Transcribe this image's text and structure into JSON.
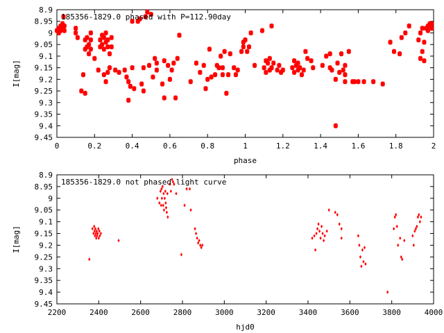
{
  "chart_data": [
    {
      "type": "scatter",
      "title": "185356-1829.0 phased with P=112.90day",
      "xlabel": "phase",
      "ylabel": "I[mag]",
      "xlim": [
        0,
        2
      ],
      "ylim": [
        8.9,
        9.45
      ],
      "y_inverted": true,
      "marker": "filled-square-star",
      "color": "#ff0000",
      "xticks": [
        "0",
        "0.2",
        "0.4",
        "0.6",
        "0.8",
        "1",
        "1.2",
        "1.4",
        "1.6",
        "1.8",
        "2"
      ],
      "yticks": [
        "8.9",
        "8.95",
        "9",
        "9.05",
        "9.1",
        "9.15",
        "9.2",
        "9.25",
        "9.3",
        "9.35",
        "9.4",
        "9.45"
      ],
      "points": [
        [
          0.0,
          8.99
        ],
        [
          0.01,
          8.98
        ],
        [
          0.01,
          9.0
        ],
        [
          0.02,
          8.97
        ],
        [
          0.02,
          8.99
        ],
        [
          0.03,
          8.96
        ],
        [
          0.03,
          8.98
        ],
        [
          0.035,
          8.93
        ],
        [
          0.04,
          8.99
        ],
        [
          0.04,
          8.97
        ],
        [
          0.1,
          8.98
        ],
        [
          0.1,
          9.0
        ],
        [
          0.11,
          9.02
        ],
        [
          0.13,
          9.25
        ],
        [
          0.14,
          9.18
        ],
        [
          0.15,
          9.26
        ],
        [
          0.15,
          9.03
        ],
        [
          0.15,
          9.07
        ],
        [
          0.16,
          9.06
        ],
        [
          0.16,
          9.02
        ],
        [
          0.17,
          9.05
        ],
        [
          0.17,
          9.09
        ],
        [
          0.18,
          9.03
        ],
        [
          0.18,
          9.07
        ],
        [
          0.18,
          9.0
        ],
        [
          0.2,
          9.11
        ],
        [
          0.22,
          9.16
        ],
        [
          0.23,
          9.06
        ],
        [
          0.23,
          9.03
        ],
        [
          0.24,
          9.01
        ],
        [
          0.24,
          9.05
        ],
        [
          0.25,
          9.02
        ],
        [
          0.25,
          9.07
        ],
        [
          0.25,
          9.18
        ],
        [
          0.26,
          9.04
        ],
        [
          0.26,
          9.21
        ],
        [
          0.26,
          9.0
        ],
        [
          0.27,
          9.03
        ],
        [
          0.27,
          9.17
        ],
        [
          0.27,
          9.06
        ],
        [
          0.28,
          9.15
        ],
        [
          0.28,
          9.09
        ],
        [
          0.29,
          9.06
        ],
        [
          0.29,
          9.02
        ],
        [
          0.31,
          9.16
        ],
        [
          0.33,
          9.17
        ],
        [
          0.36,
          9.16
        ],
        [
          0.37,
          9.19
        ],
        [
          0.38,
          9.29
        ],
        [
          0.38,
          9.21
        ],
        [
          0.39,
          9.23
        ],
        [
          0.4,
          9.15
        ],
        [
          0.4,
          8.95
        ],
        [
          0.41,
          9.24
        ],
        [
          0.43,
          8.95
        ],
        [
          0.44,
          8.94
        ],
        [
          0.45,
          9.22
        ],
        [
          0.46,
          9.25
        ],
        [
          0.46,
          9.15
        ],
        [
          0.47,
          8.93
        ],
        [
          0.48,
          8.91
        ],
        [
          0.49,
          9.14
        ],
        [
          0.5,
          8.92
        ],
        [
          0.51,
          9.19
        ],
        [
          0.52,
          9.11
        ],
        [
          0.53,
          9.16
        ],
        [
          0.53,
          9.13
        ],
        [
          0.56,
          9.22
        ],
        [
          0.57,
          9.12
        ],
        [
          0.57,
          9.28
        ],
        [
          0.59,
          9.14
        ],
        [
          0.6,
          9.2
        ],
        [
          0.61,
          9.16
        ],
        [
          0.62,
          9.13
        ],
        [
          0.63,
          9.28
        ],
        [
          0.64,
          9.11
        ],
        [
          0.65,
          9.01
        ],
        [
          0.71,
          9.21
        ],
        [
          0.74,
          9.13
        ],
        [
          0.76,
          9.17
        ],
        [
          0.78,
          9.14
        ],
        [
          0.79,
          9.24
        ],
        [
          0.8,
          9.2
        ],
        [
          0.81,
          9.07
        ],
        [
          0.82,
          9.19
        ],
        [
          0.84,
          9.18
        ],
        [
          0.85,
          9.14
        ],
        [
          0.86,
          9.15
        ],
        [
          0.87,
          9.1
        ],
        [
          0.88,
          9.18
        ],
        [
          0.88,
          9.15
        ],
        [
          0.89,
          9.08
        ],
        [
          0.9,
          9.26
        ],
        [
          0.91,
          9.18
        ],
        [
          0.92,
          9.09
        ],
        [
          0.94,
          9.15
        ],
        [
          0.95,
          9.18
        ],
        [
          0.96,
          9.16
        ],
        [
          0.98,
          9.08
        ],
        [
          0.99,
          9.04
        ],
        [
          0.99,
          9.06
        ],
        [
          1.0,
          9.03
        ],
        [
          1.01,
          9.08
        ],
        [
          1.02,
          9.06
        ],
        [
          1.03,
          9.0
        ],
        [
          1.05,
          9.14
        ],
        [
          1.09,
          8.99
        ],
        [
          1.1,
          9.15
        ],
        [
          1.11,
          9.12
        ],
        [
          1.11,
          9.17
        ],
        [
          1.12,
          9.13
        ],
        [
          1.13,
          9.16
        ],
        [
          1.13,
          9.11
        ],
        [
          1.14,
          9.15
        ],
        [
          1.14,
          8.97
        ],
        [
          1.15,
          9.13
        ],
        [
          1.17,
          9.16
        ],
        [
          1.18,
          9.14
        ],
        [
          1.19,
          9.17
        ],
        [
          1.2,
          9.16
        ],
        [
          1.25,
          9.15
        ],
        [
          1.26,
          9.12
        ],
        [
          1.26,
          9.17
        ],
        [
          1.27,
          9.14
        ],
        [
          1.28,
          9.16
        ],
        [
          1.28,
          9.13
        ],
        [
          1.29,
          9.15
        ],
        [
          1.3,
          9.18
        ],
        [
          1.31,
          9.16
        ],
        [
          1.32,
          9.08
        ],
        [
          1.33,
          9.11
        ],
        [
          1.35,
          9.12
        ],
        [
          1.36,
          9.15
        ],
        [
          1.41,
          9.14
        ],
        [
          1.43,
          9.1
        ],
        [
          1.45,
          9.09
        ],
        [
          1.45,
          9.15
        ],
        [
          1.46,
          9.16
        ],
        [
          1.48,
          9.2
        ],
        [
          1.48,
          9.4
        ],
        [
          1.49,
          9.13
        ],
        [
          1.5,
          9.17
        ],
        [
          1.51,
          9.09
        ],
        [
          1.52,
          9.16
        ],
        [
          1.53,
          9.18
        ],
        [
          1.53,
          9.21
        ],
        [
          1.53,
          9.14
        ],
        [
          1.55,
          9.08
        ],
        [
          1.57,
          9.21
        ],
        [
          1.58,
          9.21
        ],
        [
          1.6,
          9.21
        ],
        [
          1.63,
          9.21
        ],
        [
          1.68,
          9.21
        ],
        [
          1.73,
          9.22
        ],
        [
          1.77,
          9.04
        ],
        [
          1.79,
          9.08
        ],
        [
          1.82,
          9.09
        ],
        [
          1.83,
          9.02
        ],
        [
          1.85,
          9.0
        ],
        [
          1.87,
          8.97
        ],
        [
          1.92,
          9.03
        ],
        [
          1.93,
          9.0
        ],
        [
          1.93,
          9.11
        ],
        [
          1.94,
          8.98
        ],
        [
          1.94,
          9.08
        ],
        [
          1.95,
          9.04
        ],
        [
          1.95,
          9.12
        ],
        [
          1.96,
          8.98
        ],
        [
          1.97,
          8.99
        ],
        [
          1.97,
          8.97
        ],
        [
          1.98,
          8.97
        ],
        [
          1.98,
          8.96
        ],
        [
          1.99,
          8.98
        ],
        [
          1.99,
          8.96
        ]
      ]
    },
    {
      "type": "scatter",
      "title": "185356-1829.0 not phased light curve",
      "xlabel": "hjd0",
      "ylabel": "I[mag]",
      "xlim": [
        2200,
        4000
      ],
      "ylim": [
        8.9,
        9.45
      ],
      "y_inverted": true,
      "marker": "small-diamond",
      "color": "#ff0000",
      "xticks": [
        "2200",
        "2400",
        "2600",
        "2800",
        "3000",
        "3200",
        "3400",
        "3600",
        "3800",
        "4000"
      ],
      "yticks": [
        "8.9",
        "8.95",
        "9",
        "9.05",
        "9.1",
        "9.15",
        "9.2",
        "9.25",
        "9.3",
        "9.35",
        "9.4",
        "9.45"
      ],
      "points": [
        [
          2355,
          9.26
        ],
        [
          2370,
          9.13
        ],
        [
          2375,
          9.15
        ],
        [
          2378,
          9.12
        ],
        [
          2380,
          9.14
        ],
        [
          2382,
          9.16
        ],
        [
          2384,
          9.13
        ],
        [
          2386,
          9.15
        ],
        [
          2388,
          9.17
        ],
        [
          2390,
          9.14
        ],
        [
          2392,
          9.16
        ],
        [
          2395,
          9.15
        ],
        [
          2398,
          9.13
        ],
        [
          2400,
          9.17
        ],
        [
          2403,
          9.14
        ],
        [
          2405,
          9.16
        ],
        [
          2410,
          9.15
        ],
        [
          2495,
          9.18
        ],
        [
          2680,
          9.0
        ],
        [
          2690,
          9.02
        ],
        [
          2695,
          8.97
        ],
        [
          2698,
          9.03
        ],
        [
          2700,
          8.96
        ],
        [
          2702,
          9.0
        ],
        [
          2705,
          8.95
        ],
        [
          2708,
          9.03
        ],
        [
          2710,
          8.98
        ],
        [
          2712,
          9.05
        ],
        [
          2715,
          9.0
        ],
        [
          2718,
          8.97
        ],
        [
          2720,
          9.02
        ],
        [
          2722,
          9.04
        ],
        [
          2725,
          9.06
        ],
        [
          2728,
          8.98
        ],
        [
          2730,
          9.08
        ],
        [
          2740,
          8.94
        ],
        [
          2745,
          8.97
        ],
        [
          2750,
          8.92
        ],
        [
          2755,
          8.93
        ],
        [
          2760,
          8.94
        ],
        [
          2770,
          8.98
        ],
        [
          2795,
          9.24
        ],
        [
          2810,
          9.03
        ],
        [
          2820,
          8.96
        ],
        [
          2835,
          8.96
        ],
        [
          2840,
          9.05
        ],
        [
          2860,
          9.13
        ],
        [
          2865,
          9.15
        ],
        [
          2870,
          9.17
        ],
        [
          2875,
          9.19
        ],
        [
          2880,
          9.18
        ],
        [
          2885,
          9.2
        ],
        [
          2890,
          9.21
        ],
        [
          2895,
          9.2
        ],
        [
          3420,
          9.17
        ],
        [
          3430,
          9.16
        ],
        [
          3435,
          9.22
        ],
        [
          3440,
          9.15
        ],
        [
          3445,
          9.13
        ],
        [
          3450,
          9.11
        ],
        [
          3455,
          9.14
        ],
        [
          3460,
          9.17
        ],
        [
          3465,
          9.12
        ],
        [
          3470,
          9.15
        ],
        [
          3475,
          9.18
        ],
        [
          3480,
          9.16
        ],
        [
          3490,
          9.14
        ],
        [
          3500,
          9.05
        ],
        [
          3530,
          9.06
        ],
        [
          3540,
          9.07
        ],
        [
          3550,
          9.11
        ],
        [
          3560,
          9.13
        ],
        [
          3560,
          9.17
        ],
        [
          3640,
          9.16
        ],
        [
          3645,
          9.2
        ],
        [
          3650,
          9.25
        ],
        [
          3655,
          9.29
        ],
        [
          3660,
          9.22
        ],
        [
          3665,
          9.27
        ],
        [
          3670,
          9.21
        ],
        [
          3675,
          9.28
        ],
        [
          3780,
          9.4
        ],
        [
          3810,
          9.13
        ],
        [
          3815,
          9.08
        ],
        [
          3820,
          9.07
        ],
        [
          3825,
          9.12
        ],
        [
          3830,
          9.2
        ],
        [
          3840,
          9.17
        ],
        [
          3845,
          9.25
        ],
        [
          3850,
          9.26
        ],
        [
          3860,
          9.18
        ],
        [
          3900,
          9.16
        ],
        [
          3905,
          9.2
        ],
        [
          3910,
          9.14
        ],
        [
          3915,
          9.13
        ],
        [
          3920,
          9.12
        ],
        [
          3925,
          9.08
        ],
        [
          3930,
          9.07
        ],
        [
          3935,
          9.1
        ],
        [
          3940,
          9.08
        ]
      ]
    }
  ]
}
